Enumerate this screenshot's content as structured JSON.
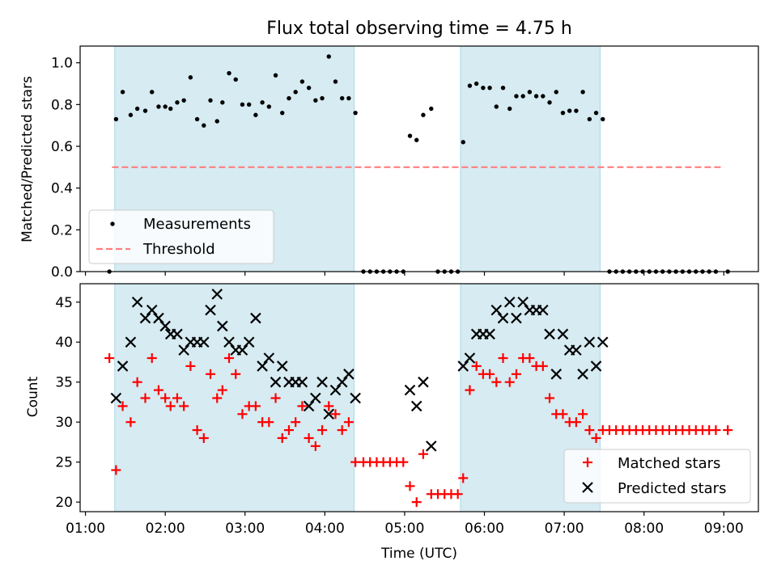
{
  "chart_data": [
    {
      "type": "scatter",
      "title": "Flux total observing time = 4.75 h",
      "ylabel": "Matched/Predicted stars",
      "xlabel": "",
      "xlim": [
        "00:56",
        "09:26"
      ],
      "ylim": [
        0,
        1.08
      ],
      "yticks": [
        "0.0",
        "0.2",
        "0.4",
        "0.6",
        "0.8",
        "1.0"
      ],
      "colors": {
        "shade": "#add8e6",
        "points": "#000000",
        "threshold": "#ff7f7f"
      },
      "shaded_regions": [
        [
          "01:22",
          "04:22"
        ],
        [
          "05:42",
          "07:27"
        ]
      ],
      "threshold": {
        "name": "Threshold",
        "value": 0.5,
        "from": "01:20",
        "to": "09:00"
      },
      "legend": {
        "position": "lower-left",
        "entries": [
          "Measurements",
          "Threshold"
        ]
      },
      "series": [
        {
          "name": "Measurements",
          "points": [
            [
              "01:18",
              0.0
            ],
            [
              "01:23",
              0.73
            ],
            [
              "01:28",
              0.86
            ],
            [
              "01:34",
              0.75
            ],
            [
              "01:39",
              0.78
            ],
            [
              "01:45",
              0.77
            ],
            [
              "01:50",
              0.86
            ],
            [
              "01:55",
              0.79
            ],
            [
              "02:00",
              0.79
            ],
            [
              "02:04",
              0.78
            ],
            [
              "02:09",
              0.81
            ],
            [
              "02:14",
              0.82
            ],
            [
              "02:19",
              0.93
            ],
            [
              "02:24",
              0.73
            ],
            [
              "02:29",
              0.7
            ],
            [
              "02:34",
              0.82
            ],
            [
              "02:39",
              0.72
            ],
            [
              "02:43",
              0.81
            ],
            [
              "02:48",
              0.95
            ],
            [
              "02:53",
              0.92
            ],
            [
              "02:58",
              0.8
            ],
            [
              "03:03",
              0.8
            ],
            [
              "03:08",
              0.75
            ],
            [
              "03:13",
              0.81
            ],
            [
              "03:18",
              0.79
            ],
            [
              "03:23",
              0.94
            ],
            [
              "03:28",
              0.76
            ],
            [
              "03:33",
              0.83
            ],
            [
              "03:38",
              0.86
            ],
            [
              "03:43",
              0.91
            ],
            [
              "03:48",
              0.88
            ],
            [
              "03:53",
              0.82
            ],
            [
              "03:58",
              0.83
            ],
            [
              "04:03",
              1.03
            ],
            [
              "04:08",
              0.91
            ],
            [
              "04:13",
              0.83
            ],
            [
              "04:18",
              0.83
            ],
            [
              "04:23",
              0.76
            ],
            [
              "04:29",
              0.0
            ],
            [
              "04:34",
              0.0
            ],
            [
              "04:39",
              0.0
            ],
            [
              "04:44",
              0.0
            ],
            [
              "04:49",
              0.0
            ],
            [
              "04:54",
              0.0
            ],
            [
              "04:59",
              0.0
            ],
            [
              "05:04",
              0.65
            ],
            [
              "05:09",
              0.63
            ],
            [
              "05:14",
              0.75
            ],
            [
              "05:20",
              0.78
            ],
            [
              "05:25",
              0.0
            ],
            [
              "05:30",
              0.0
            ],
            [
              "05:35",
              0.0
            ],
            [
              "05:40",
              0.0
            ],
            [
              "05:44",
              0.62
            ],
            [
              "05:49",
              0.89
            ],
            [
              "05:54",
              0.9
            ],
            [
              "05:59",
              0.88
            ],
            [
              "06:04",
              0.88
            ],
            [
              "06:09",
              0.79
            ],
            [
              "06:14",
              0.88
            ],
            [
              "06:19",
              0.78
            ],
            [
              "06:24",
              0.84
            ],
            [
              "06:29",
              0.84
            ],
            [
              "06:34",
              0.86
            ],
            [
              "06:39",
              0.84
            ],
            [
              "06:44",
              0.84
            ],
            [
              "06:49",
              0.81
            ],
            [
              "06:54",
              0.86
            ],
            [
              "06:59",
              0.76
            ],
            [
              "07:04",
              0.77
            ],
            [
              "07:09",
              0.77
            ],
            [
              "07:14",
              0.86
            ],
            [
              "07:19",
              0.73
            ],
            [
              "07:24",
              0.76
            ],
            [
              "07:29",
              0.73
            ],
            [
              "07:34",
              0.0
            ],
            [
              "07:39",
              0.0
            ],
            [
              "07:44",
              0.0
            ],
            [
              "07:49",
              0.0
            ],
            [
              "07:54",
              0.0
            ],
            [
              "07:59",
              0.0
            ],
            [
              "08:04",
              0.0
            ],
            [
              "08:09",
              0.0
            ],
            [
              "08:14",
              0.0
            ],
            [
              "08:19",
              0.0
            ],
            [
              "08:24",
              0.0
            ],
            [
              "08:29",
              0.0
            ],
            [
              "08:34",
              0.0
            ],
            [
              "08:39",
              0.0
            ],
            [
              "08:44",
              0.0
            ],
            [
              "08:49",
              0.0
            ],
            [
              "08:54",
              0.0
            ],
            [
              "09:03",
              0.0
            ]
          ]
        }
      ]
    },
    {
      "type": "scatter",
      "title": "",
      "ylabel": "Count",
      "xlabel": "Time (UTC)",
      "xlim": [
        "00:56",
        "09:26"
      ],
      "ylim": [
        18.8,
        47.3
      ],
      "xticks": [
        "01:00",
        "02:00",
        "03:00",
        "04:00",
        "05:00",
        "06:00",
        "07:00",
        "08:00",
        "09:00"
      ],
      "yticks": [
        "20",
        "25",
        "30",
        "35",
        "40",
        "45"
      ],
      "colors": {
        "shade": "#add8e6",
        "matched": "#ff0000",
        "predicted": "#000000"
      },
      "shaded_regions": [
        [
          "01:22",
          "04:22"
        ],
        [
          "05:42",
          "07:27"
        ]
      ],
      "legend": {
        "position": "lower-right",
        "entries": [
          "Matched stars",
          "Predicted stars"
        ]
      },
      "series": [
        {
          "name": "Matched stars",
          "marker": "plus",
          "points": [
            [
              "01:18",
              38
            ],
            [
              "01:23",
              24
            ],
            [
              "01:28",
              32
            ],
            [
              "01:34",
              30
            ],
            [
              "01:39",
              35
            ],
            [
              "01:45",
              33
            ],
            [
              "01:50",
              38
            ],
            [
              "01:55",
              34
            ],
            [
              "02:00",
              33
            ],
            [
              "02:04",
              32
            ],
            [
              "02:09",
              33
            ],
            [
              "02:14",
              32
            ],
            [
              "02:19",
              37
            ],
            [
              "02:24",
              29
            ],
            [
              "02:29",
              28
            ],
            [
              "02:34",
              36
            ],
            [
              "02:39",
              33
            ],
            [
              "02:43",
              34
            ],
            [
              "02:48",
              38
            ],
            [
              "02:53",
              36
            ],
            [
              "02:58",
              31
            ],
            [
              "03:03",
              32
            ],
            [
              "03:08",
              32
            ],
            [
              "03:13",
              30
            ],
            [
              "03:18",
              30
            ],
            [
              "03:23",
              33
            ],
            [
              "03:28",
              28
            ],
            [
              "03:33",
              29
            ],
            [
              "03:38",
              30
            ],
            [
              "03:43",
              32
            ],
            [
              "03:48",
              28
            ],
            [
              "03:53",
              27
            ],
            [
              "03:58",
              29
            ],
            [
              "04:03",
              32
            ],
            [
              "04:08",
              31
            ],
            [
              "04:13",
              29
            ],
            [
              "04:18",
              30
            ],
            [
              "04:23",
              25
            ],
            [
              "04:29",
              25
            ],
            [
              "04:34",
              25
            ],
            [
              "04:39",
              25
            ],
            [
              "04:44",
              25
            ],
            [
              "04:49",
              25
            ],
            [
              "04:54",
              25
            ],
            [
              "04:59",
              25
            ],
            [
              "05:04",
              22
            ],
            [
              "05:09",
              20
            ],
            [
              "05:14",
              26
            ],
            [
              "05:20",
              21
            ],
            [
              "05:25",
              21
            ],
            [
              "05:30",
              21
            ],
            [
              "05:35",
              21
            ],
            [
              "05:40",
              21
            ],
            [
              "05:44",
              23
            ],
            [
              "05:49",
              34
            ],
            [
              "05:54",
              37
            ],
            [
              "05:59",
              36
            ],
            [
              "06:04",
              36
            ],
            [
              "06:09",
              35
            ],
            [
              "06:14",
              38
            ],
            [
              "06:19",
              35
            ],
            [
              "06:24",
              36
            ],
            [
              "06:29",
              38
            ],
            [
              "06:34",
              38
            ],
            [
              "06:39",
              37
            ],
            [
              "06:44",
              37
            ],
            [
              "06:49",
              33
            ],
            [
              "06:54",
              31
            ],
            [
              "06:59",
              31
            ],
            [
              "07:04",
              30
            ],
            [
              "07:09",
              30
            ],
            [
              "07:14",
              31
            ],
            [
              "07:19",
              29
            ],
            [
              "07:24",
              28
            ],
            [
              "07:29",
              29
            ],
            [
              "07:34",
              29
            ],
            [
              "07:39",
              29
            ],
            [
              "07:44",
              29
            ],
            [
              "07:49",
              29
            ],
            [
              "07:54",
              29
            ],
            [
              "07:59",
              29
            ],
            [
              "08:04",
              29
            ],
            [
              "08:09",
              29
            ],
            [
              "08:14",
              29
            ],
            [
              "08:19",
              29
            ],
            [
              "08:24",
              29
            ],
            [
              "08:29",
              29
            ],
            [
              "08:34",
              29
            ],
            [
              "08:39",
              29
            ],
            [
              "08:44",
              29
            ],
            [
              "08:49",
              29
            ],
            [
              "08:54",
              29
            ],
            [
              "09:03",
              29
            ]
          ]
        },
        {
          "name": "Predicted stars",
          "marker": "x",
          "points": [
            [
              "01:23",
              33
            ],
            [
              "01:28",
              37
            ],
            [
              "01:34",
              40
            ],
            [
              "01:39",
              45
            ],
            [
              "01:45",
              43
            ],
            [
              "01:50",
              44
            ],
            [
              "01:55",
              43
            ],
            [
              "02:00",
              42
            ],
            [
              "02:04",
              41
            ],
            [
              "02:09",
              41
            ],
            [
              "02:14",
              39
            ],
            [
              "02:19",
              40
            ],
            [
              "02:24",
              40
            ],
            [
              "02:29",
              40
            ],
            [
              "02:34",
              44
            ],
            [
              "02:39",
              46
            ],
            [
              "02:43",
              42
            ],
            [
              "02:48",
              40
            ],
            [
              "02:53",
              39
            ],
            [
              "02:58",
              39
            ],
            [
              "03:03",
              40
            ],
            [
              "03:08",
              43
            ],
            [
              "03:13",
              37
            ],
            [
              "03:18",
              38
            ],
            [
              "03:23",
              35
            ],
            [
              "03:28",
              37
            ],
            [
              "03:33",
              35
            ],
            [
              "03:38",
              35
            ],
            [
              "03:43",
              35
            ],
            [
              "03:48",
              32
            ],
            [
              "03:53",
              33
            ],
            [
              "03:58",
              35
            ],
            [
              "04:03",
              31
            ],
            [
              "04:08",
              34
            ],
            [
              "04:13",
              35
            ],
            [
              "04:18",
              36
            ],
            [
              "04:23",
              33
            ],
            [
              "05:04",
              34
            ],
            [
              "05:09",
              32
            ],
            [
              "05:14",
              35
            ],
            [
              "05:20",
              27
            ],
            [
              "05:44",
              37
            ],
            [
              "05:49",
              38
            ],
            [
              "05:54",
              41
            ],
            [
              "05:59",
              41
            ],
            [
              "06:04",
              41
            ],
            [
              "06:09",
              44
            ],
            [
              "06:14",
              43
            ],
            [
              "06:19",
              45
            ],
            [
              "06:24",
              43
            ],
            [
              "06:29",
              45
            ],
            [
              "06:34",
              44
            ],
            [
              "06:39",
              44
            ],
            [
              "06:44",
              44
            ],
            [
              "06:49",
              41
            ],
            [
              "06:54",
              36
            ],
            [
              "06:59",
              41
            ],
            [
              "07:04",
              39
            ],
            [
              "07:09",
              39
            ],
            [
              "07:14",
              36
            ],
            [
              "07:19",
              40
            ],
            [
              "07:24",
              37
            ],
            [
              "07:29",
              40
            ]
          ]
        }
      ]
    }
  ]
}
